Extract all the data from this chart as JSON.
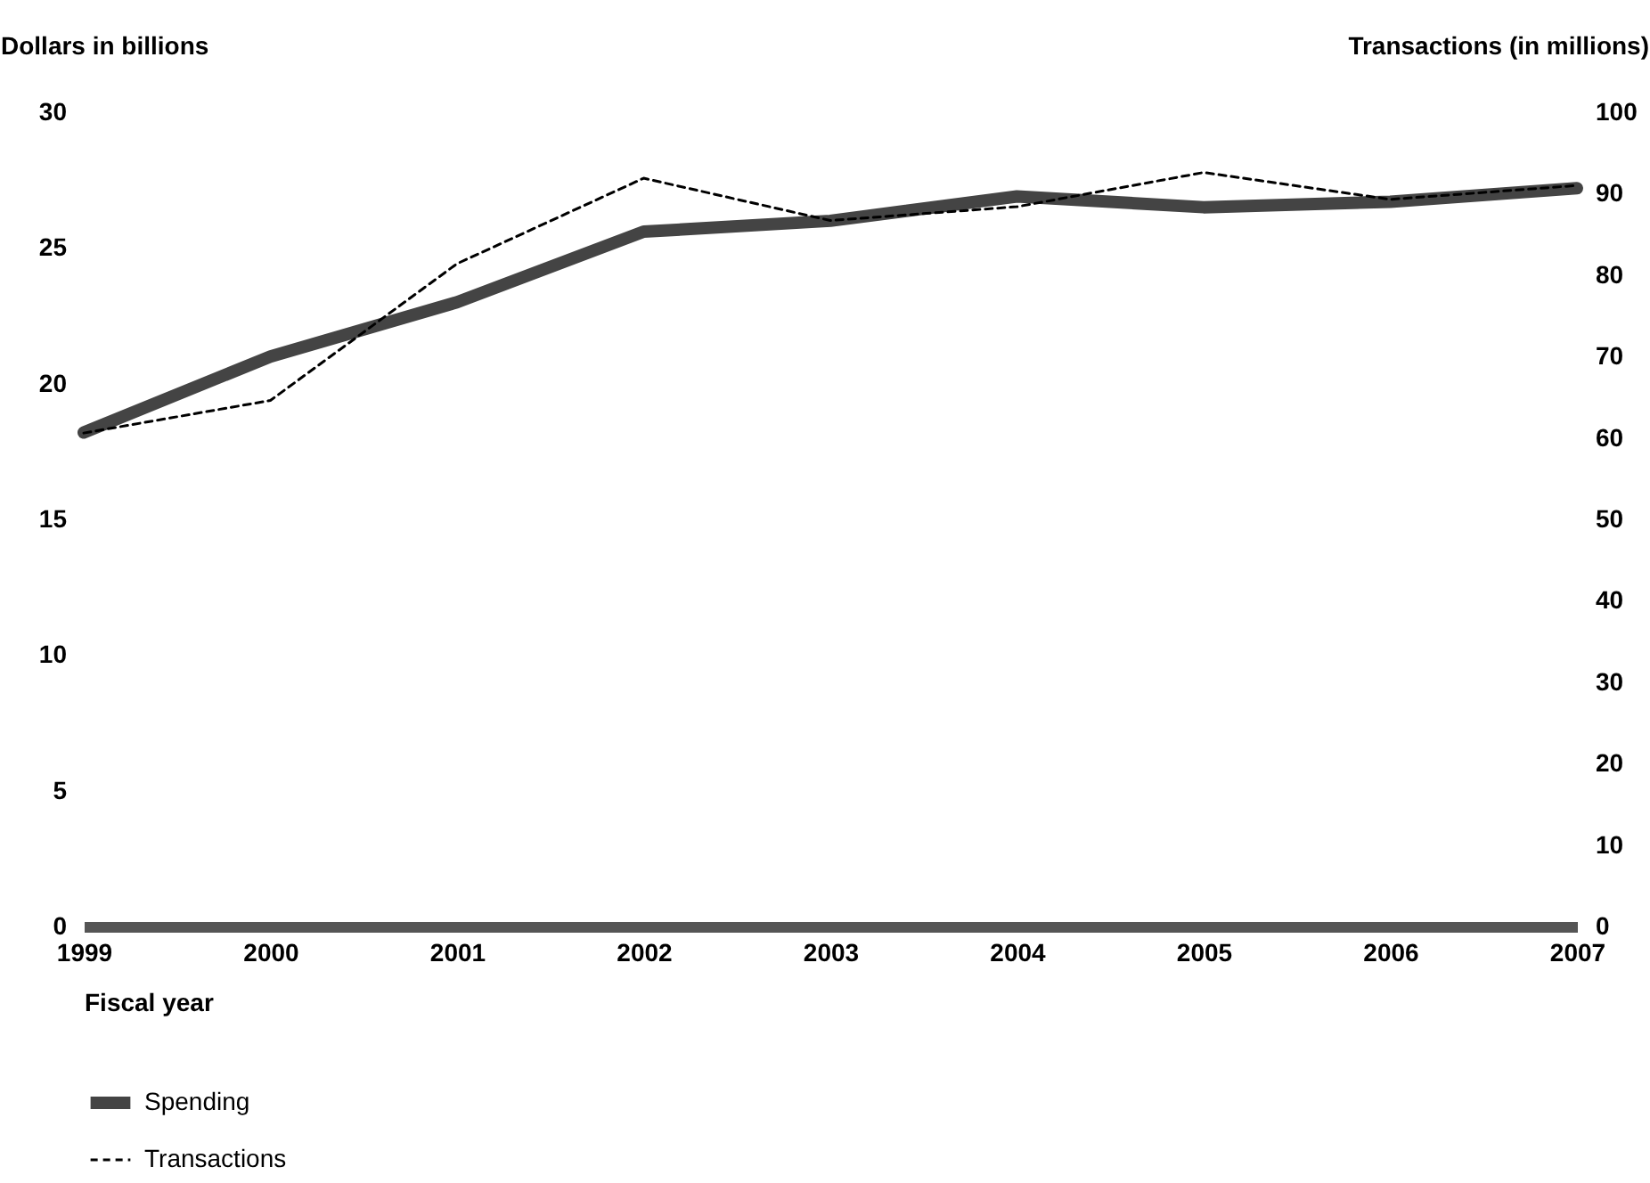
{
  "chart_data": {
    "type": "line",
    "xlabel": "Fiscal year",
    "ylabel": "Dollars in billions",
    "y2label": "Transactions (in millions)",
    "x": [
      1999,
      2000,
      2001,
      2002,
      2003,
      2004,
      2005,
      2006,
      2007
    ],
    "xlim": [
      1999,
      2007
    ],
    "xticks": [
      1999,
      2000,
      2001,
      2002,
      2003,
      2004,
      2005,
      2006,
      2007
    ],
    "ylim": [
      0,
      30
    ],
    "yticks": [
      0,
      5,
      10,
      15,
      20,
      25,
      30
    ],
    "y2lim": [
      0,
      100
    ],
    "y2ticks": [
      0,
      10,
      20,
      30,
      40,
      50,
      60,
      70,
      80,
      90,
      100
    ],
    "series": [
      {
        "name": "Spending",
        "color": "#444444",
        "line_style": "solid",
        "values": [
          18.2,
          21.0,
          23.0,
          25.6,
          26.0,
          26.9,
          26.5,
          26.7,
          27.2
        ]
      },
      {
        "name": "Transactions",
        "color": "#000000",
        "line_style": "dashed",
        "axis": "y2",
        "values": [
          60.6,
          64.6,
          81.4,
          91.9,
          86.7,
          88.4,
          92.6,
          89.3,
          91.0
        ]
      }
    ],
    "grid": false,
    "legend": "bottom left"
  }
}
